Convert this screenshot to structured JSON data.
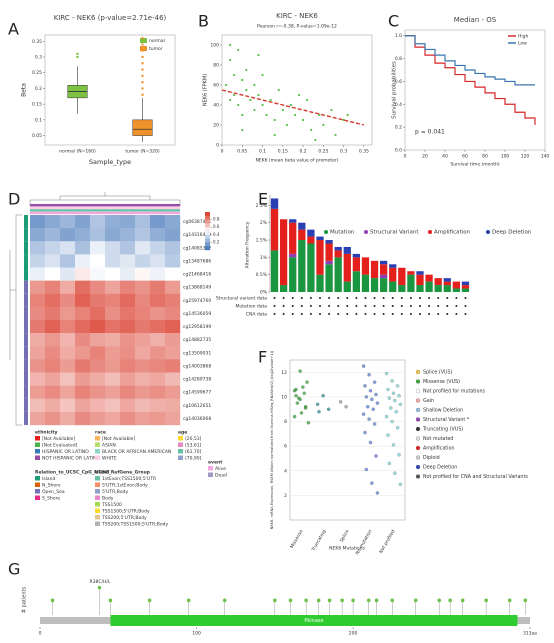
{
  "chart_data": [
    {
      "type": "box",
      "label": "A",
      "title": "KIRC - NEK6 (p-value=2.71e-46)",
      "y_label": "Beta",
      "x_label": "Sample_type",
      "categories": [
        "normal (N=160)",
        "tumor (N=320)"
      ],
      "series": [
        {
          "name": "normal",
          "color": "#7dc242",
          "min": 0.12,
          "q1": 0.17,
          "median": 0.19,
          "q3": 0.21,
          "max": 0.27,
          "outliers": [
            0.3,
            0.31
          ]
        },
        {
          "name": "tumor",
          "color": "#f0922b",
          "min": 0.03,
          "q1": 0.05,
          "median": 0.07,
          "q3": 0.1,
          "max": 0.17,
          "outliers": [
            0.18,
            0.2,
            0.22,
            0.24,
            0.26,
            0.28,
            0.3,
            0.32,
            0.34,
            0.36
          ]
        }
      ],
      "ylim": [
        0.02,
        0.37
      ],
      "yticks": [
        0.05,
        0.1,
        0.15,
        0.2,
        0.25,
        0.3,
        0.35
      ]
    },
    {
      "type": "scatter",
      "label": "B",
      "title": "KIRC - NEK6",
      "subtitle": "Pearson r=-0.38, P-value=1.09e-12",
      "y_label": "NEK6 (FPKM)",
      "x_label": "NEK6 (mean beta value of promoter)",
      "color": "#58c24a",
      "fit_color": "#d33a2c",
      "x": [
        0.01,
        0.02,
        0.02,
        0.03,
        0.03,
        0.04,
        0.04,
        0.05,
        0.05,
        0.06,
        0.06,
        0.07,
        0.08,
        0.08,
        0.09,
        0.1,
        0.1,
        0.11,
        0.12,
        0.13,
        0.14,
        0.15,
        0.16,
        0.17,
        0.18,
        0.2,
        0.21,
        0.22,
        0.24,
        0.25,
        0.27,
        0.28,
        0.3,
        0.02,
        0.05,
        0.09,
        0.13,
        0.19,
        0.23,
        0.31
      ],
      "y": [
        60,
        85,
        45,
        70,
        50,
        95,
        40,
        65,
        30,
        55,
        75,
        45,
        60,
        35,
        50,
        40,
        70,
        30,
        45,
        25,
        55,
        35,
        20,
        40,
        30,
        25,
        45,
        15,
        30,
        20,
        35,
        10,
        25,
        100,
        15,
        90,
        10,
        50,
        5,
        30
      ],
      "fit": {
        "x": [
          0,
          0.35
        ],
        "y": [
          55,
          20
        ]
      },
      "xlim": [
        0,
        0.37
      ],
      "xticks": [
        0,
        0.05,
        0.1,
        0.15,
        0.2,
        0.25,
        0.3,
        0.35
      ],
      "ylim": [
        0,
        110
      ],
      "yticks": [
        0,
        20,
        40,
        60,
        80,
        100
      ]
    },
    {
      "type": "survival",
      "label": "C",
      "title": "Median - OS",
      "y_label": "Survival probabilities",
      "x_label": "Survival time (month)",
      "annotation": "p = 0.041",
      "x": [
        0,
        10,
        20,
        30,
        40,
        50,
        60,
        70,
        80,
        90,
        100,
        110,
        120,
        130
      ],
      "series": [
        {
          "name": "High",
          "color": "#d62728",
          "values": [
            1,
            0.9,
            0.83,
            0.76,
            0.72,
            0.66,
            0.6,
            0.55,
            0.5,
            0.45,
            0.4,
            0.33,
            0.28,
            0.22
          ]
        },
        {
          "name": "Low",
          "color": "#3b75af",
          "values": [
            1,
            0.93,
            0.88,
            0.83,
            0.78,
            0.74,
            0.7,
            0.67,
            0.64,
            0.62,
            0.6,
            0.57,
            0.57,
            0.57
          ]
        }
      ],
      "xlim": [
        0,
        140
      ],
      "xticks": [
        0,
        20,
        40,
        60,
        80,
        100,
        120,
        140
      ],
      "ylim": [
        0,
        1.05
      ],
      "yticks": [
        {
          "value": 0,
          "label": "0.0"
        },
        0.2,
        0.4,
        0.6,
        0.8,
        {
          "value": 1,
          "label": "1.0"
        }
      ]
    },
    {
      "type": "heatmap",
      "label": "D",
      "rows": [
        "cg06387471",
        "cg14316440",
        "cg14085392",
        "cg13487686",
        "cg21468416",
        "cg13868149",
        "cg25974760",
        "cg14536059",
        "cg12958199",
        "cg14882735",
        "cg13509031",
        "cg14003868",
        "cg14289738",
        "cg14599677",
        "cg10612651",
        "cg14036068"
      ],
      "matrix": [
        [
          0.15,
          0.2,
          0.25,
          0.18,
          0.3,
          0.22,
          0.2,
          0.28,
          0.15,
          0.2
        ],
        [
          0.2,
          0.25,
          0.18,
          0.22,
          0.28,
          0.2,
          0.24,
          0.3,
          0.22,
          0.18
        ],
        [
          0.3,
          0.35,
          0.4,
          0.28,
          0.45,
          0.38,
          0.3,
          0.42,
          0.35,
          0.3
        ],
        [
          0.35,
          0.4,
          0.3,
          0.45,
          0.5,
          0.38,
          0.42,
          0.35,
          0.4,
          0.32
        ],
        [
          0.45,
          0.5,
          0.42,
          0.55,
          0.48,
          0.5,
          0.44,
          0.52,
          0.46,
          0.5
        ],
        [
          0.75,
          0.8,
          0.7,
          0.85,
          0.78,
          0.72,
          0.8,
          0.76,
          0.82,
          0.74
        ],
        [
          0.8,
          0.85,
          0.78,
          0.88,
          0.82,
          0.8,
          0.86,
          0.79,
          0.84,
          0.81
        ],
        [
          0.78,
          0.82,
          0.75,
          0.8,
          0.85,
          0.77,
          0.83,
          0.8,
          0.76,
          0.79
        ],
        [
          0.82,
          0.88,
          0.8,
          0.86,
          0.9,
          0.84,
          0.87,
          0.82,
          0.85,
          0.88
        ],
        [
          0.7,
          0.75,
          0.68,
          0.78,
          0.72,
          0.7,
          0.76,
          0.73,
          0.69,
          0.74
        ],
        [
          0.72,
          0.78,
          0.7,
          0.75,
          0.8,
          0.74,
          0.77,
          0.71,
          0.76,
          0.73
        ],
        [
          0.76,
          0.8,
          0.74,
          0.82,
          0.78,
          0.75,
          0.8,
          0.77,
          0.79,
          0.81
        ],
        [
          0.68,
          0.72,
          0.65,
          0.74,
          0.7,
          0.66,
          0.73,
          0.69,
          0.71,
          0.67
        ],
        [
          0.74,
          0.78,
          0.72,
          0.8,
          0.76,
          0.73,
          0.79,
          0.75,
          0.77,
          0.74
        ],
        [
          0.66,
          0.7,
          0.64,
          0.72,
          0.68,
          0.65,
          0.71,
          0.67,
          0.69,
          0.7
        ],
        [
          0.72,
          0.76,
          0.7,
          0.78,
          0.74,
          0.71,
          0.77,
          0.73,
          0.75,
          0.72
        ]
      ],
      "zlim": [
        0,
        1
      ],
      "colorbar_ticks": [
        0.8,
        0.6,
        0.4,
        0.2
      ],
      "legends": [
        {
          "title": "ethnicity",
          "items": [
            {
              "name": "[Not Available]",
              "color": "#e41a1c"
            },
            {
              "name": "[Not Evaluated]",
              "color": "#4daf4a"
            },
            {
              "name": "HISPANIC OR LATINO",
              "color": "#377eb8"
            },
            {
              "name": "NOT HISPANIC OR LATINO",
              "color": "#984ea3"
            }
          ]
        },
        {
          "title": "race",
          "items": [
            {
              "name": "[Not Available]",
              "color": "#fdb462"
            },
            {
              "name": "ASIAN",
              "color": "#b3de69"
            },
            {
              "name": "BLACK OR AFRICAN AMERICAN",
              "color": "#8dd3c7"
            },
            {
              "name": "WHITE",
              "color": "#fccde5"
            }
          ]
        },
        {
          "title": "age",
          "items": [
            {
              "name": "(20,53]",
              "color": "#ffd92f"
            },
            {
              "name": "(53,61]",
              "color": "#e78ac3"
            },
            {
              "name": "(61,70]",
              "color": "#66c2a5"
            },
            {
              "name": "(70,90]",
              "color": "#8da0cb"
            }
          ]
        },
        {
          "title": "event",
          "items": [
            {
              "name": "Alive",
              "color": "#f4a6e0"
            },
            {
              "name": "Dead",
              "color": "#9e9ac8"
            }
          ]
        },
        {
          "title": "Relation_to_UCSC_CpG_Island",
          "items": [
            {
              "name": "Island",
              "color": "#1b9e77"
            },
            {
              "name": "N_Shore",
              "color": "#d95f02"
            },
            {
              "name": "Open_Sea",
              "color": "#7570b3"
            },
            {
              "name": "S_Shore",
              "color": "#e7298a"
            }
          ]
        },
        {
          "title": "UCSC_RefGene_Group",
          "items": [
            {
              "name": "1stExon;TSS1500;5'UTR",
              "color": "#66c2a5"
            },
            {
              "name": "5'UTR;1stExon;Body",
              "color": "#fc8d62"
            },
            {
              "name": "5'UTR;Body",
              "color": "#8da0cb"
            },
            {
              "name": "Body",
              "color": "#e78ac3"
            },
            {
              "name": "TSS1500",
              "color": "#a6d854"
            },
            {
              "name": "TSS1500;5'UTR;Body",
              "color": "#ffd92f"
            },
            {
              "name": "TSS200;5'UTR;Body",
              "color": "#e5c494"
            },
            {
              "name": "TSS200;TSS1500;5'UTR;Body",
              "color": "#b3b3b3"
            }
          ]
        }
      ]
    },
    {
      "type": "stacked_bar",
      "label": "E",
      "y_label": "Alteration Frequency",
      "legend": "upper right",
      "categories": [
        null,
        null,
        null,
        null,
        null,
        null,
        null,
        null,
        null,
        null,
        null,
        null,
        null,
        null,
        null,
        null,
        null,
        null,
        null,
        null,
        null,
        null
      ],
      "series": [
        {
          "name": "Mutation",
          "color": "#1a9641",
          "values": [
            1.2,
            0.2,
            1.0,
            1.5,
            1.4,
            0.5,
            0.8,
            1.0,
            0.3,
            0.6,
            0.5,
            0.4,
            0.4,
            0.3,
            0.2,
            0.5,
            0.2,
            0.3,
            0.2,
            0.2,
            0.1,
            0.1
          ]
        },
        {
          "name": "Structural Variant",
          "color": "#8e3fb5",
          "values": [
            0,
            0,
            0.1,
            0,
            0,
            0,
            0.1,
            0,
            0,
            0,
            0,
            0,
            0.1,
            0,
            0,
            0,
            0,
            0,
            0,
            0,
            0,
            0
          ]
        },
        {
          "name": "Amplification",
          "color": "#e3201b",
          "values": [
            1.2,
            1.9,
            0.9,
            0.3,
            0.2,
            1.0,
            0.5,
            0.2,
            0.8,
            0.4,
            0.5,
            0.5,
            0.3,
            0.4,
            0.5,
            0.1,
            0.3,
            0.2,
            0.2,
            0.1,
            0.2,
            0.1
          ]
        },
        {
          "name": "Deep Deletion",
          "color": "#2b3fb5",
          "values": [
            0.3,
            0,
            0.1,
            0.2,
            0.2,
            0.1,
            0.1,
            0.1,
            0.2,
            0.1,
            0,
            0,
            0.1,
            0.1,
            0,
            0,
            0.1,
            0,
            0,
            0.1,
            0,
            0.1
          ]
        }
      ],
      "profile_rows": [
        "Structural variant data",
        "Mutation data",
        "CNA data"
      ],
      "ylim": [
        0,
        2.8
      ],
      "yticks": [
        {
          "value": 0,
          "label": "0%"
        },
        {
          "value": 0.5,
          "label": "0.5%"
        },
        {
          "value": 1,
          "label": "1%"
        },
        {
          "value": 1.5,
          "label": "1.5%"
        },
        {
          "value": 2,
          "label": "2%"
        },
        {
          "value": 2.5,
          "label": "2.5%"
        }
      ]
    },
    {
      "type": "strip",
      "label": "F",
      "y_label": "NEK6, mRNA Expression, RSEM (Batch normalized from Illumina HiSeq_RNASeqV2) (log2(value+1))",
      "x_label": "NEK6 Mutations",
      "categories": [
        "Missense",
        "Truncating",
        "Splice",
        "No mutation",
        "Not profiled"
      ],
      "groups": [
        {
          "color": "#3aa33a",
          "values": [
            10.5,
            9.8,
            9.2,
            10.1,
            8.7,
            11.2,
            9.5,
            10.8,
            7.9,
            9.9,
            10.3,
            8.4,
            12.1,
            9.1,
            10.6
          ]
        },
        {
          "color": "#2f8f8f",
          "values": [
            9.4,
            10.1,
            9.0,
            8.8
          ]
        },
        {
          "color": "#999999",
          "values": [
            9.6,
            9.2
          ]
        },
        {
          "color": "#5a7fd6",
          "values": [
            12.5,
            11.8,
            11.2,
            10.9,
            10.5,
            10.2,
            10.0,
            9.8,
            9.5,
            9.2,
            9.0,
            8.6,
            8.2,
            7.8,
            7.1,
            6.3,
            5.2,
            4.1,
            3.0,
            2.2
          ]
        },
        {
          "color": "#7fd3d3",
          "values": [
            11.9,
            11.3,
            10.9,
            10.6,
            10.3,
            10.1,
            9.9,
            9.7,
            9.4,
            9.1,
            8.8,
            8.4,
            8.0,
            7.5,
            6.9,
            6.1,
            5.3,
            4.6,
            3.8,
            2.9
          ]
        }
      ],
      "legend_items": [
        {
          "name": "Splice (VUS)",
          "color": "#f2c94c"
        },
        {
          "name": "Missense (VUS)",
          "color": "#3aa33a"
        },
        {
          "name": "Not profiled for mutations",
          "color": "#ffffff"
        },
        {
          "name": "Gain",
          "color": "#f4a3a3"
        },
        {
          "name": "Shallow Deletion",
          "color": "#8fbfe8"
        },
        {
          "name": "Structural Variant *",
          "color": "#8e3fb5"
        },
        {
          "name": "Truncating (VUS)",
          "color": "#333333"
        },
        {
          "name": "Not mutated",
          "color": "#dddddd"
        },
        {
          "name": "Amplification",
          "color": "#e3201b"
        },
        {
          "name": "Diploid",
          "color": "#cccccc"
        },
        {
          "name": "Deep Deletion",
          "color": "#2b3fb5"
        },
        {
          "name": "Not profiled for CNA and Structural Variants",
          "color": "#555555"
        }
      ],
      "ylim": [
        0,
        13
      ],
      "yticks": [
        2,
        4,
        6,
        8,
        10,
        12
      ]
    },
    {
      "type": "lollipop",
      "label": "G",
      "y_label": "# patients",
      "annotation": "R38C/H/L",
      "color": "#6cc24a",
      "positions": [
        8,
        38,
        45,
        70,
        95,
        118,
        150,
        160,
        170,
        178,
        185,
        193,
        200,
        210,
        215,
        225,
        240,
        255,
        262,
        270,
        285,
        300,
        310
      ],
      "counts": [
        1,
        2,
        1,
        1,
        1,
        1,
        1,
        1,
        1,
        1,
        1,
        1,
        1,
        1,
        1,
        1,
        1,
        1,
        1,
        1,
        1,
        1,
        1
      ],
      "domain": {
        "name": "Pkinase",
        "start": 45,
        "end": 305,
        "color": "#2ecc2e"
      },
      "xlim": [
        0,
        313
      ],
      "xticks": [
        0,
        100,
        200,
        {
          "value": 313,
          "label": "313aa"
        }
      ],
      "ylim": [
        0,
        3
      ]
    }
  ]
}
